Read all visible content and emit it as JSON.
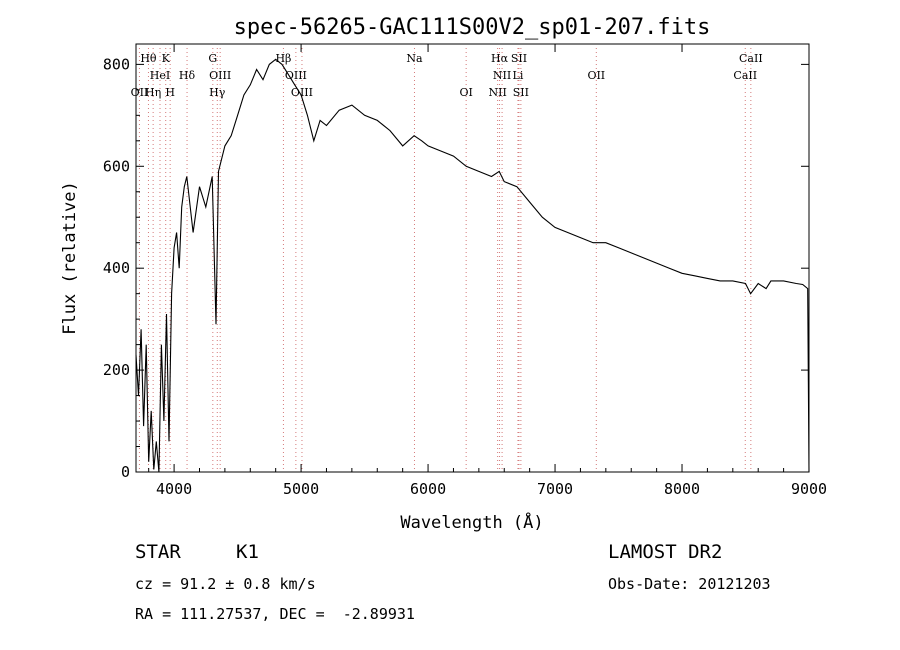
{
  "chart_data": {
    "type": "line",
    "title": "spec-56265-GAC111S00V2_sp01-207.fits",
    "xlabel": "Wavelength (Å)",
    "ylabel": "Flux (relative)",
    "xlim": [
      3700,
      9000
    ],
    "ylim": [
      0,
      840
    ],
    "xticks": [
      4000,
      5000,
      6000,
      7000,
      8000,
      9000
    ],
    "yticks": [
      0,
      200,
      400,
      600,
      800
    ],
    "grid": false,
    "series": [
      {
        "x": [
          3700,
          3720,
          3740,
          3760,
          3780,
          3800,
          3820,
          3840,
          3860,
          3880,
          3900,
          3920,
          3940,
          3960,
          3980,
          4000,
          4020,
          4040,
          4060,
          4080,
          4100,
          4150,
          4200,
          4250,
          4300,
          4330,
          4350,
          4400,
          4450,
          4500,
          4550,
          4600,
          4650,
          4700,
          4750,
          4800,
          4850,
          4900,
          4950,
          5000,
          5050,
          5100,
          5150,
          5200,
          5300,
          5400,
          5500,
          5600,
          5700,
          5800,
          5890,
          5950,
          6000,
          6100,
          6200,
          6300,
          6400,
          6500,
          6560,
          6600,
          6700,
          6800,
          6900,
          7000,
          7100,
          7200,
          7300,
          7400,
          7500,
          7600,
          7700,
          7800,
          7900,
          8000,
          8100,
          8200,
          8300,
          8400,
          8500,
          8540,
          8600,
          8662,
          8700,
          8800,
          8900,
          8950,
          8990,
          9000
        ],
        "y": [
          230,
          150,
          280,
          90,
          250,
          20,
          120,
          5,
          60,
          0,
          250,
          100,
          310,
          60,
          350,
          440,
          470,
          400,
          520,
          560,
          580,
          470,
          560,
          520,
          580,
          290,
          590,
          640,
          660,
          700,
          740,
          760,
          790,
          770,
          800,
          810,
          800,
          780,
          760,
          740,
          700,
          650,
          690,
          680,
          710,
          720,
          700,
          690,
          670,
          640,
          660,
          650,
          640,
          630,
          620,
          600,
          590,
          580,
          590,
          570,
          560,
          530,
          500,
          480,
          470,
          460,
          450,
          450,
          440,
          430,
          420,
          410,
          400,
          390,
          385,
          380,
          375,
          375,
          370,
          350,
          370,
          360,
          375,
          375,
          370,
          368,
          360,
          0
        ]
      }
    ],
    "annotations": [
      {
        "label": "Hθ",
        "x": 3798,
        "row": 1
      },
      {
        "label": "K",
        "x": 3934,
        "row": 1
      },
      {
        "label": "OII",
        "x": 3727,
        "row": 3
      },
      {
        "label": "HeI",
        "x": 3889,
        "row": 2
      },
      {
        "label": "Hη",
        "x": 3835,
        "row": 3
      },
      {
        "label": "H",
        "x": 3969,
        "row": 3
      },
      {
        "label": "Hδ",
        "x": 4102,
        "row": 2
      },
      {
        "label": "G",
        "x": 4305,
        "row": 1
      },
      {
        "label": "OIII",
        "x": 4363,
        "row": 2
      },
      {
        "label": "Hγ",
        "x": 4340,
        "row": 3
      },
      {
        "label": "Hβ",
        "x": 4861,
        "row": 1
      },
      {
        "label": "OIII",
        "x": 4959,
        "row": 2
      },
      {
        "label": "OIII",
        "x": 5007,
        "row": 3
      },
      {
        "label": "Na",
        "x": 5893,
        "row": 1
      },
      {
        "label": "OI",
        "x": 6300,
        "row": 3
      },
      {
        "label": "Hα",
        "x": 6563,
        "row": 1
      },
      {
        "label": "SII",
        "x": 6716,
        "row": 1
      },
      {
        "label": "NII",
        "x": 6583,
        "row": 2
      },
      {
        "label": "Li",
        "x": 6708,
        "row": 2
      },
      {
        "label": "NII",
        "x": 6548,
        "row": 3
      },
      {
        "label": "SII",
        "x": 6731,
        "row": 3
      },
      {
        "label": "OII",
        "x": 7325,
        "row": 2
      },
      {
        "label": "CaII",
        "x": 8542,
        "row": 1
      },
      {
        "label": "CaII",
        "x": 8498,
        "row": 2
      }
    ]
  },
  "info": {
    "class_label": "STAR",
    "subclass": "K1",
    "survey": "LAMOST DR2",
    "redshift": "cz = 91.2 ± 0.8 km/s",
    "obs_date": "Obs-Date: 20121203",
    "coords": "RA = 111.27537, DEC =  -2.89931"
  }
}
